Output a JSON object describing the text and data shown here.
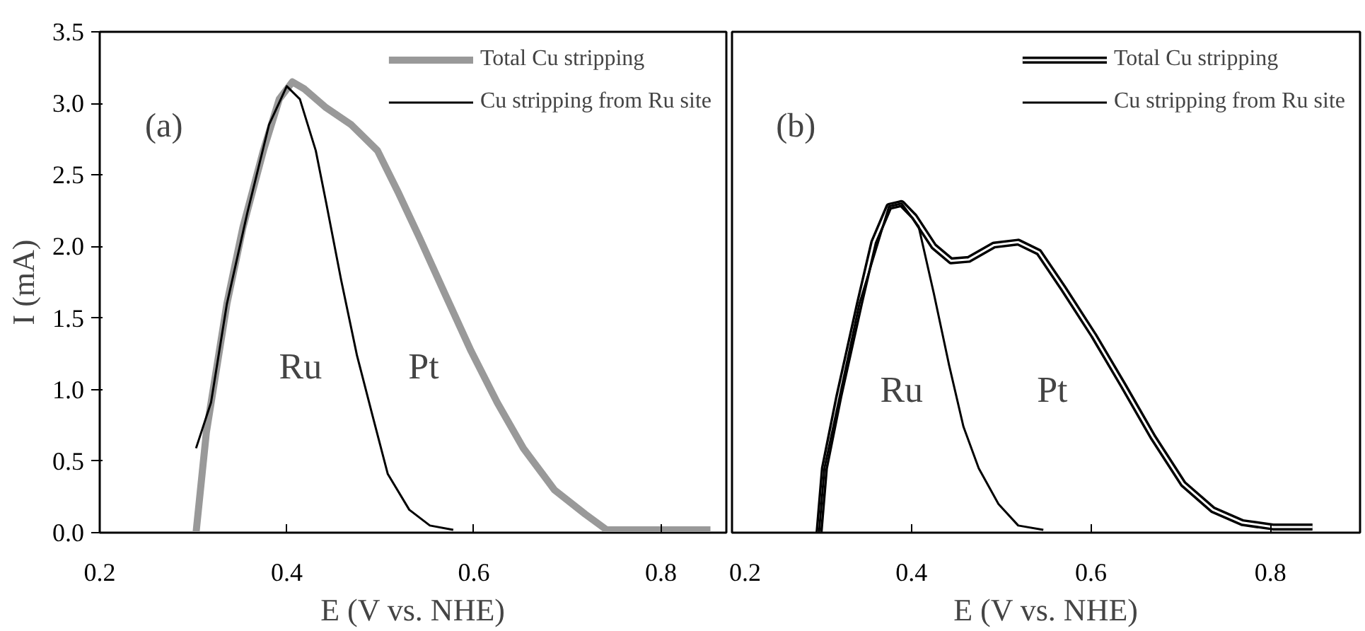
{
  "chart_data": [
    {
      "type": "line",
      "xlabel": "E (V vs. NHE)",
      "ylabel": "I (mA)",
      "xlim": [
        0.2,
        0.87
      ],
      "ylim": [
        0,
        3.5
      ],
      "xticks": [
        0.2,
        0.4,
        0.6,
        0.8
      ],
      "yticks": [
        {
          "value": 0,
          "label": "0.0"
        },
        0.5,
        {
          "value": 1,
          "label": "1.0"
        },
        1.5,
        {
          "value": 2,
          "label": "2.0"
        },
        2.5,
        {
          "value": 3,
          "label": "3.0"
        },
        3.5
      ],
      "legend": "top right",
      "grid": false,
      "marker": "none",
      "annotations": [
        "(a)",
        "Ru",
        "Pt"
      ],
      "series": [
        {
          "name": "Total Cu stripping",
          "color": "#999999",
          "x": [
            0.303,
            0.314,
            0.336,
            0.353,
            0.375,
            0.392,
            0.406,
            0.419,
            0.442,
            0.469,
            0.497,
            0.519,
            0.542,
            0.569,
            0.597,
            0.625,
            0.653,
            0.686,
            0.719,
            0.742,
            0.853
          ],
          "values": [
            0,
            0.7,
            1.6,
            2.13,
            2.67,
            3.03,
            3.15,
            3.1,
            2.97,
            2.85,
            2.67,
            2.38,
            2.06,
            1.67,
            1.27,
            0.91,
            0.59,
            0.3,
            0.13,
            0.02,
            0.02
          ]
        },
        {
          "name": "Cu stripping from Ru site",
          "color": "#000000",
          "x": [
            0.303,
            0.319,
            0.336,
            0.358,
            0.381,
            0.4,
            0.414,
            0.431,
            0.442,
            0.458,
            0.475,
            0.492,
            0.508,
            0.531,
            0.553,
            0.578
          ],
          "values": [
            0.59,
            0.91,
            1.6,
            2.24,
            2.85,
            3.12,
            3.03,
            2.67,
            2.31,
            1.77,
            1.24,
            0.81,
            0.41,
            0.16,
            0.05,
            0.02
          ]
        }
      ]
    },
    {
      "type": "line",
      "xlabel": "E (V vs. NHE)",
      "xlim": [
        0.2,
        0.9
      ],
      "ylim": [
        0,
        3.5
      ],
      "xticks": [
        0.2,
        0.4,
        0.6,
        0.8
      ],
      "tick_labels": "x",
      "legend": "top right",
      "grid": false,
      "marker": "none",
      "annotations": [
        "(b)",
        "Ru",
        "Pt"
      ],
      "series": [
        {
          "name": "Total Cu stripping",
          "color": "#000000",
          "x": [
            0.297,
            0.303,
            0.319,
            0.342,
            0.358,
            0.375,
            0.389,
            0.403,
            0.425,
            0.444,
            0.464,
            0.492,
            0.519,
            0.542,
            0.569,
            0.603,
            0.636,
            0.669,
            0.703,
            0.736,
            0.769,
            0.803,
            0.847
          ],
          "values": [
            0,
            0.45,
            0.95,
            1.6,
            2.03,
            2.28,
            2.3,
            2.21,
            2.0,
            1.9,
            1.91,
            2.01,
            2.03,
            1.96,
            1.71,
            1.38,
            1.03,
            0.67,
            0.34,
            0.16,
            0.07,
            0.04,
            0.04
          ]
        },
        {
          "name": "Cu stripping from Ru site",
          "color": "#000000",
          "x": [
            0.297,
            0.303,
            0.342,
            0.375,
            0.389,
            0.408,
            0.425,
            0.442,
            0.458,
            0.475,
            0.497,
            0.519,
            0.547
          ],
          "values": [
            0,
            0.45,
            1.6,
            2.28,
            2.3,
            2.14,
            1.67,
            1.17,
            0.74,
            0.45,
            0.2,
            0.05,
            0.02
          ]
        }
      ]
    }
  ]
}
